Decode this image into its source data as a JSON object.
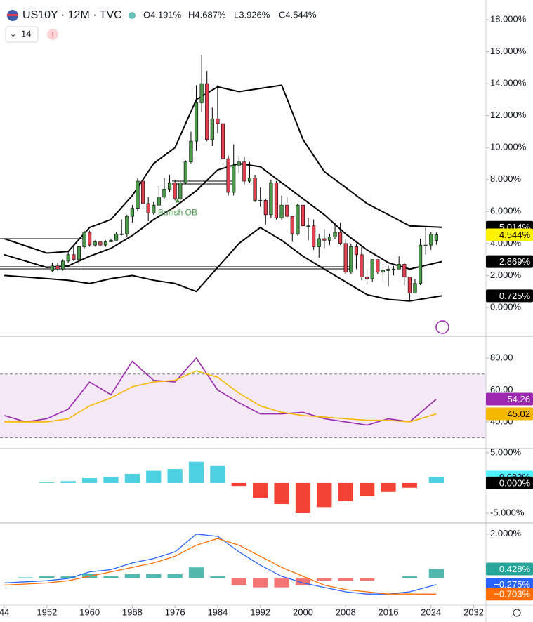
{
  "header": {
    "symbol": "US10Y · 12M · TVC",
    "ohlc": [
      "O4.191%",
      "H4.687%",
      "L3.926%",
      "C4.544%"
    ],
    "length": "14"
  },
  "chart_data": [
    {
      "type": "candlestick",
      "xlim": [
        1943.2,
        2034.3
      ],
      "ylim": [
        -1.76,
        18.88
      ],
      "yticks": [
        {
          "value": 0,
          "label": "0.000%"
        },
        {
          "value": 2,
          "label": "2.000%"
        },
        {
          "value": 4,
          "label": "4.000%"
        },
        {
          "value": 6,
          "label": "6.000%"
        },
        {
          "value": 8,
          "label": "8.000%"
        },
        {
          "value": 10,
          "label": "10.000%"
        },
        {
          "value": 12,
          "label": "12.000%"
        },
        {
          "value": 14,
          "label": "14.000%"
        },
        {
          "value": 16,
          "label": "16.000%"
        },
        {
          "value": 18,
          "label": "18.000%"
        }
      ],
      "up_color": "#4a9a4a",
      "down_color": "#e04050",
      "x": [
        1953,
        1954,
        1955,
        1956,
        1957,
        1958,
        1959,
        1960,
        1961,
        1962,
        1963,
        1964,
        1965,
        1966,
        1967,
        1968,
        1969,
        1970,
        1971,
        1972,
        1973,
        1974,
        1975,
        1976,
        1977,
        1978,
        1979,
        1980,
        1981,
        1982,
        1983,
        1984,
        1985,
        1986,
        1987,
        1988,
        1989,
        1990,
        1991,
        1992,
        1993,
        1994,
        1995,
        1996,
        1997,
        1998,
        1999,
        2000,
        2001,
        2002,
        2003,
        2004,
        2005,
        2006,
        2007,
        2008,
        2009,
        2010,
        2011,
        2012,
        2013,
        2014,
        2015,
        2016,
        2017,
        2018,
        2019,
        2020,
        2021,
        2022,
        2023,
        2024,
        2025
      ],
      "open": [
        2.3,
        2.6,
        2.4,
        2.9,
        3.3,
        3.0,
        3.8,
        4.7,
        3.9,
        4.1,
        3.9,
        4.1,
        4.2,
        4.6,
        4.6,
        5.7,
        6.2,
        7.9,
        6.5,
        5.9,
        6.4,
        6.9,
        7.4,
        7.8,
        6.8,
        7.8,
        9.1,
        10.4,
        12.8,
        14.0,
        10.5,
        11.8,
        11.5,
        9.3,
        7.2,
        8.9,
        9.1,
        7.9,
        8.1,
        6.7,
        6.7,
        5.8,
        7.8,
        5.6,
        6.4,
        5.7,
        4.6,
        6.4,
        5.1,
        5.1,
        3.8,
        4.3,
        4.2,
        4.4,
        4.7,
        4.0,
        2.2,
        3.8,
        3.3,
        1.9,
        1.8,
        3.0,
        2.2,
        2.3,
        2.4,
        2.4,
        2.7,
        1.9,
        0.9,
        1.5,
        3.9,
        3.9,
        4.191
      ],
      "high": [
        2.8,
        2.8,
        3.0,
        3.5,
        3.8,
        3.9,
        4.8,
        4.8,
        4.2,
        4.1,
        4.2,
        4.3,
        4.7,
        5.5,
        5.8,
        6.4,
        8.1,
        8.2,
        6.9,
        6.6,
        7.6,
        8.1,
        8.3,
        8.0,
        7.9,
        9.2,
        11.0,
        13.9,
        15.8,
        14.8,
        12.5,
        13.9,
        11.7,
        9.5,
        10.2,
        9.5,
        9.4,
        9.1,
        8.3,
        7.5,
        6.8,
        8.0,
        7.9,
        7.0,
        6.9,
        5.7,
        6.5,
        6.8,
        5.6,
        5.5,
        4.6,
        4.9,
        4.6,
        5.3,
        5.3,
        4.3,
        4.0,
        4.0,
        3.8,
        2.4,
        3.0,
        3.0,
        2.5,
        2.6,
        2.6,
        3.2,
        2.8,
        1.9,
        1.8,
        4.3,
        5.0,
        4.7,
        4.687
      ],
      "low": [
        2.2,
        2.3,
        2.3,
        2.8,
        2.9,
        2.6,
        3.7,
        3.8,
        3.8,
        3.8,
        3.8,
        4.1,
        4.2,
        4.5,
        4.4,
        5.3,
        6.0,
        6.2,
        5.4,
        5.8,
        6.4,
        6.8,
        7.2,
        6.7,
        6.7,
        7.7,
        9.0,
        9.8,
        12.2,
        10.4,
        10.1,
        10.9,
        9.0,
        7.0,
        7.0,
        8.4,
        7.7,
        7.8,
        6.6,
        6.3,
        5.2,
        5.6,
        5.5,
        5.5,
        5.6,
        4.1,
        4.5,
        5.0,
        4.2,
        3.6,
        3.1,
        3.7,
        3.9,
        4.3,
        3.9,
        2.1,
        2.1,
        2.4,
        1.7,
        1.4,
        1.6,
        2.1,
        1.6,
        1.3,
        2.0,
        2.4,
        1.4,
        0.4,
        0.9,
        1.4,
        3.3,
        3.6,
        3.926
      ],
      "close": [
        2.6,
        2.4,
        2.9,
        3.3,
        3.0,
        3.8,
        4.7,
        3.9,
        4.1,
        3.9,
        4.1,
        4.2,
        4.6,
        4.6,
        5.7,
        6.2,
        7.9,
        6.5,
        5.9,
        6.4,
        6.9,
        7.4,
        7.8,
        6.8,
        7.8,
        9.1,
        10.4,
        12.8,
        14.0,
        10.5,
        11.8,
        11.5,
        9.3,
        7.2,
        8.9,
        9.1,
        7.9,
        8.1,
        6.7,
        6.7,
        5.8,
        7.8,
        5.6,
        6.4,
        5.7,
        4.6,
        6.4,
        5.1,
        5.1,
        3.8,
        4.3,
        4.2,
        4.4,
        4.7,
        4.0,
        2.2,
        3.8,
        3.3,
        1.9,
        1.8,
        3.0,
        2.2,
        2.3,
        2.4,
        2.4,
        2.7,
        1.9,
        0.9,
        1.5,
        3.9,
        3.9,
        4.57,
        4.544
      ],
      "band_x": [
        1944,
        1952,
        1956,
        1960,
        1964,
        1968,
        1972,
        1976,
        1980,
        1984,
        1988,
        1992,
        1996,
        2000,
        2004,
        2008,
        2012,
        2016,
        2020,
        2026
      ],
      "lines": [
        {
          "color": "#000000",
          "values": [
            4.3,
            3.4,
            3.5,
            5.0,
            5.5,
            7.0,
            9.0,
            10.0,
            13.0,
            13.8,
            13.5,
            13.7,
            13.9,
            10.5,
            8.5,
            7.5,
            6.5,
            5.8,
            5.1,
            5.014
          ]
        },
        {
          "color": "#000000",
          "values": [
            3.3,
            2.5,
            2.6,
            3.2,
            3.7,
            4.5,
            5.5,
            6.3,
            7.3,
            8.6,
            9.0,
            8.8,
            7.8,
            6.8,
            5.8,
            4.6,
            3.6,
            2.8,
            2.4,
            2.869
          ]
        },
        {
          "color": "#000000",
          "values": [
            2.0,
            1.8,
            1.7,
            1.5,
            1.8,
            2.0,
            1.7,
            1.5,
            1.0,
            2.5,
            4.0,
            5.0,
            4.2,
            3.2,
            2.4,
            1.6,
            0.8,
            0.5,
            0.4,
            0.725
          ]
        }
      ],
      "annotation": {
        "text": "Bullish OB",
        "x": 1976.5,
        "y": 5.9,
        "color": "#4a9a4a"
      },
      "price_labels": [
        {
          "value": 5.014,
          "label": "5.014%",
          "color": "#000000",
          "text_color": "#ffffff"
        },
        {
          "value": 4.544,
          "label": "4.544%",
          "color": "#fff200",
          "text_color": "#000000"
        },
        {
          "value": 2.869,
          "label": "2.869%",
          "color": "#000000",
          "text_color": "#ffffff"
        },
        {
          "value": 0.725,
          "label": "0.725%",
          "color": "#000000",
          "text_color": "#ffffff"
        }
      ]
    },
    {
      "type": "line",
      "xlim": [
        1943.2,
        2034.3
      ],
      "ylim": [
        23.7,
        93.2
      ],
      "yticks": [
        {
          "value": 40,
          "label": "40.00"
        },
        {
          "value": 60,
          "label": "60.00"
        },
        {
          "value": 80,
          "label": "80.00"
        }
      ],
      "levels": [
        30,
        70
      ],
      "x": [
        1944,
        1948,
        1952,
        1956,
        1960,
        1964,
        1968,
        1972,
        1976,
        1980,
        1984,
        1988,
        1992,
        1996,
        2000,
        2004,
        2008,
        2012,
        2016,
        2020,
        2025
      ],
      "series": [
        {
          "color": "#9c27b0",
          "values": [
            44,
            40,
            42,
            48,
            65,
            57,
            78,
            66,
            65,
            80,
            60,
            52,
            45,
            45,
            46,
            42,
            40,
            38,
            42,
            40,
            54.26
          ]
        },
        {
          "color": "#f5b700",
          "values": [
            40,
            40,
            40,
            42,
            50,
            55,
            62,
            65,
            66,
            72,
            68,
            58,
            50,
            46,
            44,
            43,
            42,
            41,
            41,
            40,
            45.02
          ]
        }
      ],
      "price_labels": [
        {
          "value": 54.26,
          "label": "54.26",
          "color": "#9c27b0",
          "text_color": "#ffffff"
        },
        {
          "value": 45.02,
          "label": "45.02",
          "color": "#f5b700",
          "text_color": "#000000"
        }
      ]
    },
    {
      "type": "bar",
      "xlim": [
        1943.2,
        2034.3
      ],
      "ylim": [
        -6.63,
        5.56
      ],
      "yticks": [
        {
          "value": -5,
          "label": "-5.000%"
        },
        {
          "value": 5,
          "label": "5.000%"
        }
      ],
      "pos_color": "#4dd0e1",
      "neg_color": "#f44336",
      "x": [
        1952,
        1956,
        1960,
        1964,
        1968,
        1972,
        1976,
        1980,
        1984,
        1988,
        1992,
        1996,
        2000,
        2004,
        2008,
        2012,
        2016,
        2020,
        2025
      ],
      "values": [
        0.1,
        0.3,
        0.8,
        1.0,
        1.5,
        2.0,
        2.3,
        3.5,
        2.8,
        -0.5,
        -2.5,
        -3.5,
        -5.0,
        -4.0,
        -3.0,
        -2.2,
        -1.5,
        -0.8,
        0.982
      ],
      "price_labels": [
        {
          "value": 0.982,
          "label": "0.982%",
          "color": "#4ff0ff",
          "text_color": "#000000"
        },
        {
          "value": 0,
          "label": "0.000%",
          "color": "#000000",
          "text_color": "#ffffff"
        }
      ]
    },
    {
      "type": "macd",
      "xlim": [
        1943.2,
        2034.3
      ],
      "ylim": [
        -1.2,
        2.5
      ],
      "yticks": [
        {
          "value": 2,
          "label": "2.000%"
        }
      ],
      "xticks": [
        {
          "value": 1944,
          "label": "44"
        },
        1952,
        1960,
        1968,
        1976,
        1984,
        1992,
        2000,
        2008,
        2016,
        2024,
        2032
      ],
      "pos_color": "#26a69a",
      "neg_color": "#ef5350",
      "x": [
        1944,
        1948,
        1952,
        1956,
        1960,
        1964,
        1968,
        1972,
        1976,
        1980,
        1984,
        1988,
        1992,
        1996,
        2000,
        2004,
        2008,
        2012,
        2016,
        2020,
        2025
      ],
      "histogram": [
        0.0,
        0.05,
        0.1,
        0.1,
        0.2,
        0.1,
        0.2,
        0.2,
        0.2,
        0.5,
        0.1,
        -0.3,
        -0.4,
        -0.4,
        -0.3,
        -0.1,
        -0.1,
        -0.1,
        0.0,
        0.1,
        0.428
      ],
      "series": [
        {
          "color": "#2962ff",
          "values": [
            -0.2,
            -0.15,
            -0.1,
            0.0,
            0.3,
            0.4,
            0.7,
            0.9,
            1.2,
            2.0,
            1.9,
            1.2,
            0.6,
            0.1,
            -0.2,
            -0.4,
            -0.6,
            -0.7,
            -0.7,
            -0.6,
            -0.275
          ]
        },
        {
          "color": "#ff6d00",
          "values": [
            -0.3,
            -0.25,
            -0.2,
            -0.1,
            0.1,
            0.3,
            0.5,
            0.7,
            1.0,
            1.5,
            1.8,
            1.5,
            1.0,
            0.5,
            0.1,
            -0.3,
            -0.5,
            -0.6,
            -0.7,
            -0.7,
            -0.703
          ]
        }
      ],
      "price_labels": [
        {
          "value": 0.428,
          "label": "0.428%",
          "color": "#26a69a",
          "text_color": "#ffffff"
        },
        {
          "value": -0.275,
          "label": "−0.275%",
          "color": "#2962ff",
          "text_color": "#ffffff"
        },
        {
          "value": -0.703,
          "label": "−0.703%",
          "color": "#ff6d00",
          "text_color": "#ffffff"
        }
      ]
    }
  ]
}
